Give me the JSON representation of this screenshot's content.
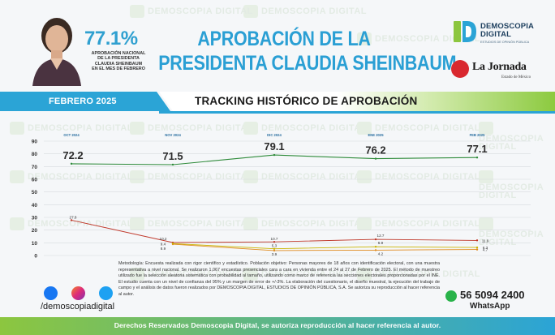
{
  "header": {
    "kpi_value": "77.1%",
    "kpi_caption_line1": "APROBACIÓN NACIONAL",
    "kpi_caption_line2": "DE LA PRESIDENTA",
    "kpi_caption_line3": "CLAUDIA SHEINBAUM",
    "kpi_caption_line4": "EN EL MES DE FEBRERO",
    "title_line1": "APROBACIÓN DE LA",
    "title_line2": "PRESIDENTA CLAUDIA SHEINBAUM"
  },
  "brand": {
    "name_line1": "DEMOSCOPIA",
    "name_line2": "DIGITAL",
    "tagline": "ESTUDIOS DE OPINIÓN PÚBLICA",
    "partner_name": "La Jornada",
    "partner_sub": "Estado de México",
    "watermark": "DEMOSCOPIA DIGITAL"
  },
  "banner": {
    "date_label": "FEBRERO 2025",
    "section_title": "TRACKING HISTÓRICO DE APROBACIÓN"
  },
  "colors": {
    "accent_blue": "#2ba4d6",
    "accent_green": "#8cc63f",
    "approval_line": "#2e8b3a",
    "series_red": "#c0392b",
    "series_darkred": "#8b1a1a",
    "series_orange": "#e08a1e",
    "series_gold": "#c9b400"
  },
  "chart_data": {
    "type": "line",
    "x": [
      "OCT 2024",
      "NOV 2024",
      "DIC 2024",
      "ENE 2025",
      "FEB 2025"
    ],
    "ylim": [
      0,
      90
    ],
    "yticks": [
      0,
      10,
      20,
      30,
      40,
      50,
      60,
      70,
      80,
      90
    ],
    "grid": true,
    "series": [
      {
        "values": [
          72.2,
          71.5,
          79.1,
          76.2,
          77.1
        ],
        "color": "#2e8b3a",
        "labels_large": true
      },
      {
        "values": [
          27.8,
          10.2,
          10.7,
          12.7,
          11.9
        ],
        "color": "#c0392b"
      },
      {
        "values": [
          null,
          8.9,
          3.9,
          4.2,
          4.7
        ],
        "color": "#e08a1e"
      },
      {
        "values": [
          null,
          9.4,
          5.3,
          6.9,
          6.3
        ],
        "color": "#c9b400"
      }
    ],
    "point_labels": [
      {
        "x_index": 0,
        "text": "27.8"
      },
      {
        "x_index": 1,
        "text": "10.2"
      },
      {
        "x_index": 1,
        "text": "9.4"
      },
      {
        "x_index": 1,
        "text": "8.9"
      },
      {
        "x_index": 2,
        "text": "10.7"
      },
      {
        "x_index": 2,
        "text": "5.3"
      },
      {
        "x_index": 2,
        "text": "3.9"
      },
      {
        "x_index": 3,
        "text": "12.7"
      },
      {
        "x_index": 3,
        "text": "6.9"
      },
      {
        "x_index": 3,
        "text": "4.2"
      },
      {
        "x_index": 4,
        "text": "11.9"
      },
      {
        "x_index": 4,
        "text": "6.3"
      },
      {
        "x_index": 4,
        "text": "4.7"
      }
    ]
  },
  "methodology": "Metodología: Encuesta realizada con rigor científico y estadístico. Población objetivo: Personas mayores de 18 años con identificación electoral, con una muestra representativa a nivel nacional. Se realizaron 1,067 encuestas presenciales cara a cara en vivienda entre el 24 al 27 de Febrero de 2025. El método de muestreo utilizado fue la selección aleatoria sistemática con probabilidad al tamaño, utilizando como marco de referencia las secciones electorales proporcionadas por el INE. El estudio cuenta con un nivel de confianza del 95% y un margen de error de +/-3%. La elaboración del cuestionario, el diseño muestral, la ejecución del trabajo de campo y el análisis de datos fueron realizados por DEMOSCOPIA DIGITAL, ESTUDIOS DE OPINIÓN PÚBLICA, S.A. Se autoriza su reproducción al hacer referencia al autor.",
  "social": {
    "handle": "/demoscopiadigital",
    "whatsapp_number": "56 5094 2400",
    "whatsapp_label": "WhatsApp"
  },
  "footer": {
    "text": "Derechos Reservados Demoscopia Digital, se autoriza reproducción al hacer referencia al autor."
  }
}
